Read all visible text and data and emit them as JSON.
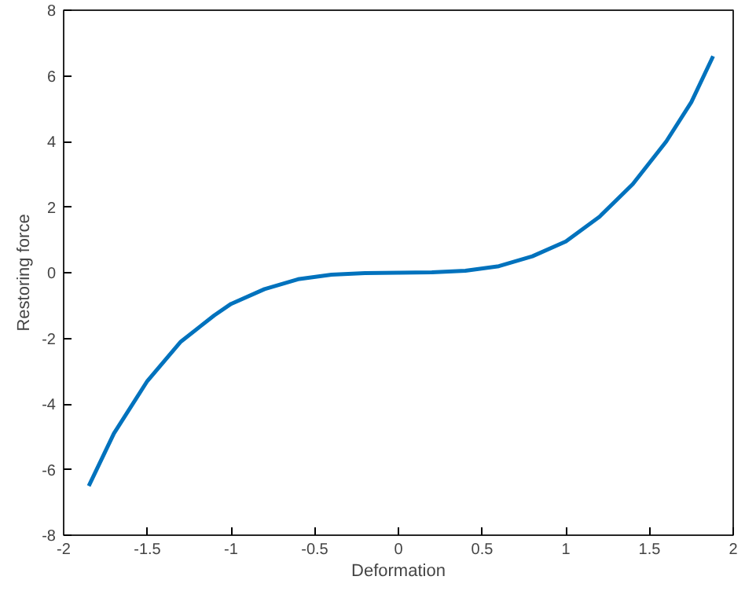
{
  "chart_data": {
    "type": "line",
    "xlabel": "Deformation",
    "ylabel": "Restoring force",
    "x": [
      -1.85,
      -1.7,
      -1.5,
      -1.3,
      -1.1,
      -1.0,
      -0.8,
      -0.6,
      -0.4,
      -0.2,
      0,
      0.2,
      0.4,
      0.6,
      0.8,
      1.0,
      1.2,
      1.4,
      1.6,
      1.75,
      1.88
    ],
    "series": [
      {
        "color": "#0072bd",
        "values": [
          -6.5,
          -4.9,
          -3.3,
          -2.1,
          -1.3,
          -0.95,
          -0.5,
          -0.2,
          -0.06,
          -0.01,
          0,
          0.01,
          0.06,
          0.2,
          0.5,
          0.95,
          1.7,
          2.7,
          4.0,
          5.2,
          6.6
        ]
      }
    ],
    "xlim": [
      -2,
      2
    ],
    "ylim": [
      -8,
      8
    ],
    "xticks": [
      -2,
      -1.5,
      -1,
      -0.5,
      0,
      0.5,
      1,
      1.5,
      2
    ],
    "yticks": [
      -8,
      -6,
      -4,
      -2,
      0,
      2,
      4,
      6,
      8
    ],
    "grid": false,
    "line_style": "solid",
    "marker": "none"
  }
}
